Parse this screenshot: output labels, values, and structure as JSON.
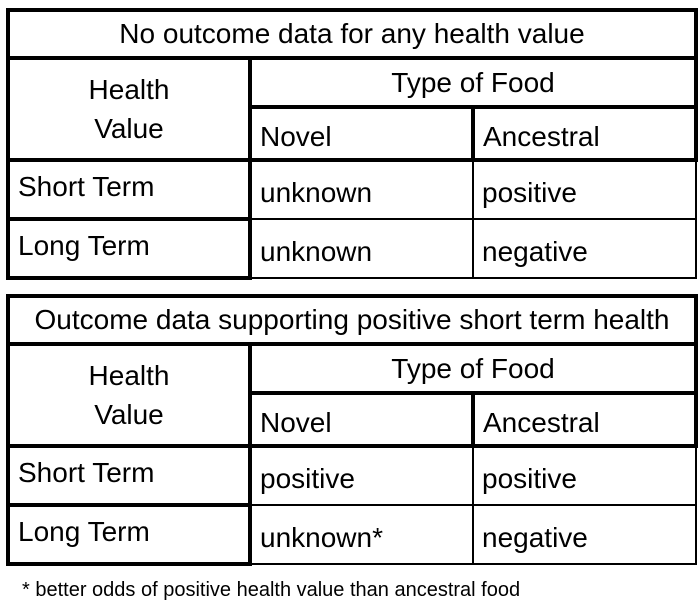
{
  "colors": {
    "border": "#000000",
    "text": "#000000",
    "background": "#ffffff"
  },
  "tables": [
    {
      "title": "No outcome data for any health value",
      "row_axis_label": "Health\nValue",
      "col_group_label": "Type of Food",
      "col_headers": [
        "Novel",
        "Ancestral"
      ],
      "rows": [
        {
          "label": "Short Term",
          "values": [
            "unknown",
            "positive"
          ]
        },
        {
          "label": "Long Term",
          "values": [
            "unknown",
            "negative"
          ]
        }
      ]
    },
    {
      "title": "Outcome data supporting positive short term health",
      "row_axis_label": "Health\nValue",
      "col_group_label": "Type of Food",
      "col_headers": [
        "Novel",
        "Ancestral"
      ],
      "rows": [
        {
          "label": "Short Term",
          "values": [
            "positive",
            "positive"
          ]
        },
        {
          "label": "Long Term",
          "values": [
            "unknown*",
            "negative"
          ]
        }
      ]
    }
  ],
  "footnote": {
    "text": "* better odds of positive health value than ancestral food"
  }
}
